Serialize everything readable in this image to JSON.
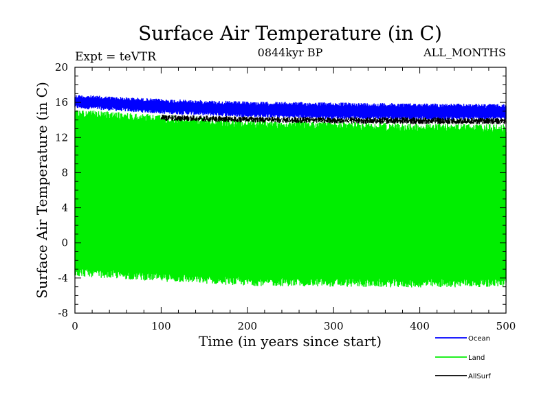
{
  "chart_data": {
    "type": "line",
    "title": "Surface Air Temperature (in C)",
    "subtitle_left": "Expt = teVTR",
    "subtitle_center": "0844kyr BP",
    "subtitle_right": "ALL_MONTHS",
    "xlabel": "Time (in years since start)",
    "ylabel": "Surface Air Temperature (in C)",
    "xlim": [
      0,
      500
    ],
    "ylim": [
      -8,
      20
    ],
    "x_ticks": [
      0,
      100,
      200,
      300,
      400,
      500
    ],
    "y_ticks": [
      -8,
      -4,
      0,
      4,
      8,
      12,
      16,
      20
    ],
    "grid": false,
    "legend_position": "bottom-right",
    "series": [
      {
        "name": "Ocean",
        "color": "#0000ff",
        "x_range": [
          0,
          500
        ],
        "approx_range": "max 16.9 to 15.8, min 15.3 to 14.0, declining slowly",
        "upper_envelope": [
          [
            0,
            16.9
          ],
          [
            100,
            16.4
          ],
          [
            200,
            16.1
          ],
          [
            300,
            16.0
          ],
          [
            400,
            15.9
          ],
          [
            500,
            15.8
          ]
        ],
        "lower_envelope": [
          [
            0,
            15.3
          ],
          [
            100,
            14.7
          ],
          [
            200,
            14.3
          ],
          [
            300,
            14.1
          ],
          [
            400,
            14.0
          ],
          [
            500,
            14.0
          ]
        ]
      },
      {
        "name": "Land",
        "color": "#00ee00",
        "x_range": [
          0,
          500
        ],
        "approx_range": "max ~15.2 to ~13.5, min ~-3.8 to ~-5.5 (seasonal cycle)",
        "upper_envelope": [
          [
            0,
            15.2
          ],
          [
            100,
            14.6
          ],
          [
            200,
            14.0
          ],
          [
            300,
            13.8
          ],
          [
            400,
            13.6
          ],
          [
            500,
            13.5
          ]
        ],
        "lower_envelope": [
          [
            0,
            -3.8
          ],
          [
            100,
            -4.4
          ],
          [
            200,
            -4.9
          ],
          [
            300,
            -5.0
          ],
          [
            400,
            -5.1
          ],
          [
            500,
            -5.0
          ]
        ]
      },
      {
        "name": "AllSurf",
        "color": "#000000",
        "x_range": [
          100,
          500
        ],
        "approx_range": "~13.4 to ~14.6",
        "upper_envelope": [
          [
            100,
            14.6
          ],
          [
            200,
            14.4
          ],
          [
            300,
            14.3
          ],
          [
            400,
            14.3
          ],
          [
            500,
            14.2
          ]
        ],
        "lower_envelope": [
          [
            100,
            13.9
          ],
          [
            200,
            13.7
          ],
          [
            300,
            13.6
          ],
          [
            400,
            13.5
          ],
          [
            500,
            13.5
          ]
        ]
      }
    ]
  }
}
